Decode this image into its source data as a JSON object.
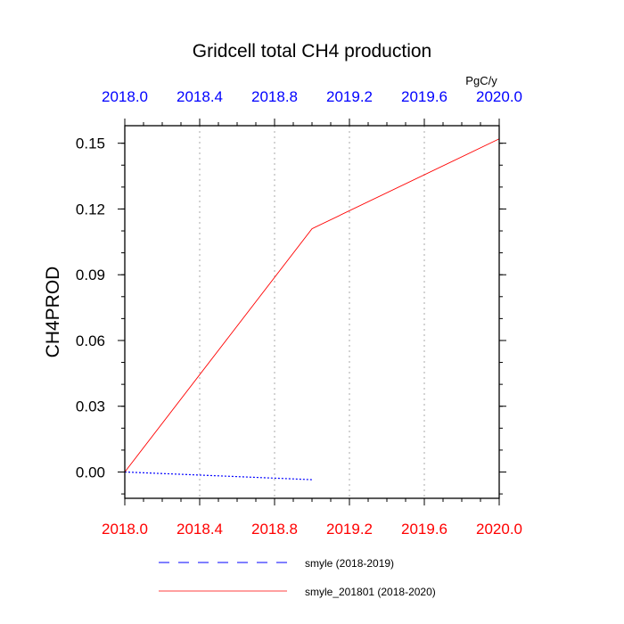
{
  "chart_data": {
    "type": "line",
    "title": "Gridcell total CH4 production",
    "units": "PgC/y",
    "ylabel": "CH4PROD",
    "xlim": [
      2018.0,
      2020.0
    ],
    "ylim": [
      -0.012,
      0.158
    ],
    "y_ticks": [
      "0.00",
      "0.03",
      "0.06",
      "0.09",
      "0.12",
      "0.15"
    ],
    "x_ticks": [
      "2018.0",
      "2018.4",
      "2018.8",
      "2019.2",
      "2019.6",
      "2020.0"
    ],
    "grid": "vertical-dotted",
    "legend_position": "bottom",
    "series": [
      {
        "name": "smyle (2018-2019)",
        "color": "#0000ff",
        "style": "dashed",
        "x": [
          2018.0,
          2019.0
        ],
        "y": [
          0.0,
          -0.0035
        ]
      },
      {
        "name": "smyle_201801 (2018-2020)",
        "color": "#ff0000",
        "style": "solid",
        "x": [
          2018.0,
          2019.0,
          2020.0
        ],
        "y": [
          0.0,
          0.111,
          0.152
        ]
      }
    ],
    "colors": {
      "top_axis_labels": "#0000ff",
      "bottom_axis_labels": "#ff0000",
      "grid": "#aaaaaa"
    }
  }
}
